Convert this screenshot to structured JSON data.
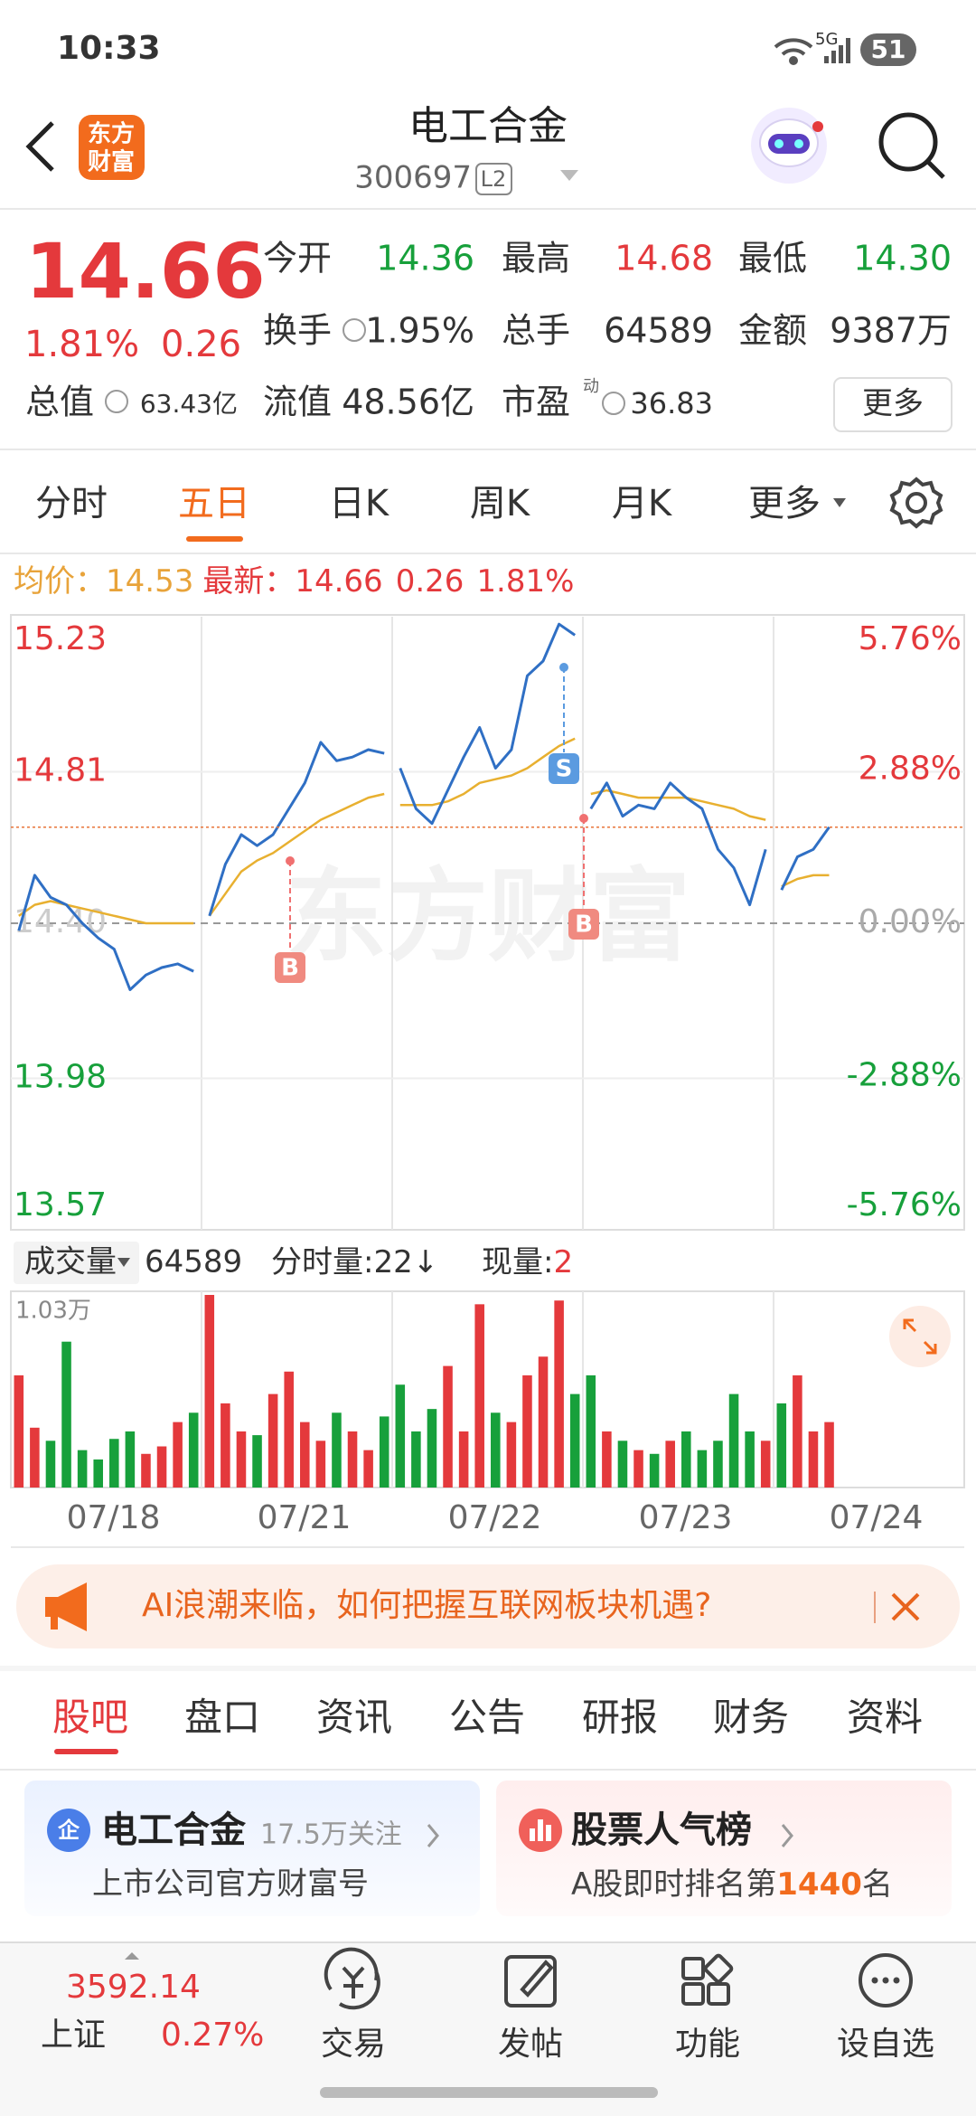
{
  "status_bar": {
    "time": "10:33",
    "network": "5G",
    "battery": "51"
  },
  "header": {
    "logo": [
      "东方",
      "财富"
    ],
    "title": "电工合金",
    "code": "300697",
    "badge": "L2"
  },
  "quote": {
    "price": "14.66",
    "change_pct": "1.81%",
    "change": "0.26",
    "open": {
      "label": "今开",
      "value": "14.36"
    },
    "high": {
      "label": "最高",
      "value": "14.68"
    },
    "low": {
      "label": "最低",
      "value": "14.30"
    },
    "turnover": {
      "label": "换手",
      "value": "1.95%"
    },
    "volume": {
      "label": "总手",
      "value": "64589"
    },
    "amount": {
      "label": "金额",
      "value": "9387万"
    },
    "market_cap": {
      "label": "总值",
      "value": "63.43亿"
    },
    "float_cap": {
      "label": "流值",
      "value": "48.56亿"
    },
    "pe": {
      "label": "市盈",
      "sup": "动",
      "value": "36.83"
    },
    "more": "更多"
  },
  "chart_tabs": [
    "分时",
    "五日",
    "日K",
    "周K",
    "月K",
    "更多"
  ],
  "legend": {
    "avg_label": "均价：",
    "avg": "14.53",
    "latest_label": "最新：",
    "latest": "14.66",
    "change": "0.26",
    "change_pct": "1.81%"
  },
  "chart_data": {
    "type": "line",
    "watermark": "东方财富",
    "categories": [
      "07/18",
      "07/21",
      "07/22",
      "07/23",
      "07/24"
    ],
    "ylim": [
      13.57,
      15.23
    ],
    "yticks": [
      13.57,
      13.98,
      {
        "value": 14.4,
        "label": "14.40"
      },
      14.81,
      15.23
    ],
    "y2lim": [
      -5.76,
      5.76
    ],
    "y2ticks": [
      {
        "value": -5.76,
        "label": "-5.76%"
      },
      {
        "value": -2.88,
        "label": "-2.88%"
      },
      {
        "value": 0,
        "label": "0.00%"
      },
      {
        "value": 2.88,
        "label": "2.88%"
      },
      {
        "value": 5.76,
        "label": "5.76%"
      }
    ],
    "price": [
      [
        14.38,
        14.53,
        14.47,
        14.45,
        14.4,
        14.36,
        14.33,
        14.22,
        14.26,
        14.28,
        14.29,
        14.27
      ],
      [
        14.42,
        14.56,
        14.64,
        14.61,
        14.64,
        14.71,
        14.78,
        14.89,
        14.84,
        14.85,
        14.87,
        14.86
      ],
      [
        14.82,
        14.71,
        14.67,
        14.76,
        14.85,
        14.93,
        14.82,
        14.87,
        15.07,
        15.11,
        15.21,
        15.18
      ],
      [
        14.71,
        14.78,
        14.69,
        14.72,
        14.71,
        14.78,
        14.74,
        14.71,
        14.6,
        14.55,
        14.45,
        14.6
      ],
      [
        14.49,
        14.58,
        14.6,
        14.66
      ]
    ],
    "avg": [
      [
        14.42,
        14.45,
        14.46,
        14.45,
        14.44,
        14.43,
        14.42,
        14.41,
        14.4,
        14.4,
        14.4,
        14.4
      ],
      [
        14.42,
        14.48,
        14.54,
        14.57,
        14.59,
        14.62,
        14.65,
        14.68,
        14.7,
        14.72,
        14.74,
        14.75
      ],
      [
        14.72,
        14.72,
        14.72,
        14.73,
        14.75,
        14.78,
        14.79,
        14.8,
        14.82,
        14.85,
        14.88,
        14.9
      ],
      [
        14.75,
        14.76,
        14.75,
        14.74,
        14.74,
        14.74,
        14.74,
        14.73,
        14.72,
        14.71,
        14.69,
        14.68
      ],
      [
        14.5,
        14.52,
        14.53,
        14.53
      ]
    ],
    "price_color": "#2f6fc4",
    "avg_color": "#e8b030",
    "up_color": "#e4393c",
    "down_color": "#17a03b",
    "trades": [
      "B",
      "S",
      "B"
    ],
    "volume_header": {
      "label": "成交量",
      "total": "64589",
      "period_label": "分时量:",
      "period": "22↓",
      "current_label": "现量:",
      "current": "2"
    },
    "volume_ylim": [
      0,
      10300
    ],
    "volume_yticks": [
      {
        "value": 10300,
        "label": "1.03万"
      }
    ],
    "volumes": [
      [
        6000,
        3200,
        2500,
        7800,
        2000,
        1500,
        2600,
        3000,
        1800,
        2200,
        3500,
        4000
      ],
      [
        10300,
        4500,
        3000,
        2800,
        5000,
        6200,
        3500,
        2500,
        4000,
        3000,
        2000,
        3800
      ],
      [
        5500,
        3000,
        4200,
        6500,
        3000,
        9800,
        4000,
        3500,
        6000,
        7000,
        10000,
        5000
      ],
      [
        6000,
        3000,
        2500,
        2000,
        1800,
        2500,
        3000,
        2000,
        2500,
        5000,
        3000,
        2500
      ],
      [
        4500,
        6000,
        3000,
        3500
      ]
    ]
  },
  "banner": "AI浪潮来临，如何把握互联网板块机遇?",
  "content_tabs": [
    "股吧",
    "盘口",
    "资讯",
    "公告",
    "研报",
    "财务",
    "资料"
  ],
  "cards": [
    {
      "title": "电工合金",
      "icon": "企",
      "followers": "17.5万关注",
      "subtitle": "上市公司官方财富号"
    },
    {
      "title": "股票人气榜",
      "rank_prefix": "A股即时排名第",
      "rank": "1440",
      "rank_suffix": "名"
    }
  ],
  "bottom_bar": {
    "index_value": "3592.14",
    "index_name": "上证",
    "index_change": "0.27%",
    "items": [
      "交易",
      "发帖",
      "功能",
      "设自选"
    ]
  }
}
